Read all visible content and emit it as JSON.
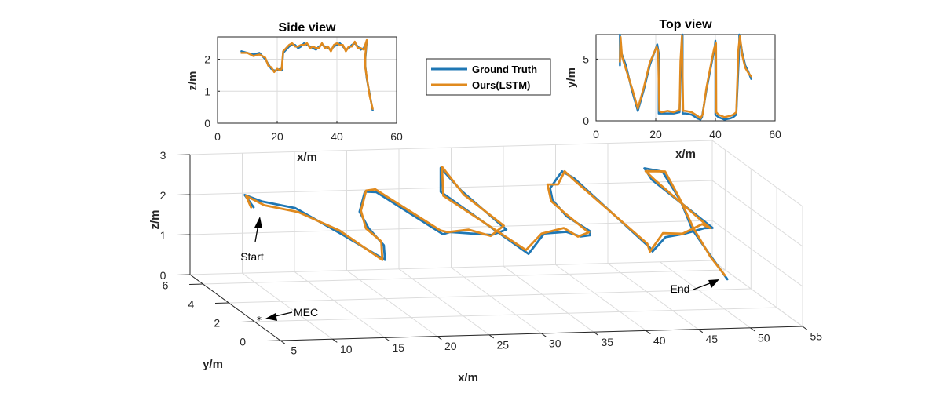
{
  "colors": {
    "ground_truth": "#1f77b4",
    "ours": "#e08a1e",
    "grid": "#dcdcdc",
    "axis": "#262626"
  },
  "legend": {
    "items": [
      {
        "label": "Ground Truth",
        "color": "#1f77b4"
      },
      {
        "label": "Ours(LSTM)",
        "color": "#e08a1e"
      }
    ]
  },
  "chart_data": [
    {
      "name": "side-view",
      "type": "line",
      "title": "Side view",
      "xlabel": "x/m",
      "ylabel": "z/m",
      "xlim": [
        0,
        60
      ],
      "ylim": [
        0,
        2.7
      ],
      "xticks": [
        0,
        20,
        40,
        60
      ],
      "yticks": [
        0,
        1,
        2
      ],
      "grid": true,
      "series": [
        {
          "name": "Ground Truth",
          "x": [
            8,
            10,
            12,
            14,
            16,
            17,
            18,
            19,
            20,
            21,
            21.5,
            22,
            23,
            24,
            25,
            26,
            27,
            28,
            29,
            30,
            31,
            32,
            33,
            34,
            35,
            36,
            37,
            38,
            39,
            40,
            41,
            42,
            43,
            44,
            45,
            46,
            47,
            48,
            49,
            50,
            49.5,
            49.5,
            50,
            51,
            52
          ],
          "y": [
            2.25,
            2.2,
            2.15,
            2.2,
            2.0,
            1.85,
            1.7,
            1.65,
            1.65,
            1.7,
            1.65,
            2.2,
            2.3,
            2.4,
            2.45,
            2.45,
            2.35,
            2.4,
            2.5,
            2.45,
            2.4,
            2.35,
            2.3,
            2.4,
            2.45,
            2.4,
            2.35,
            2.3,
            2.4,
            2.45,
            2.5,
            2.4,
            2.3,
            2.35,
            2.45,
            2.5,
            2.4,
            2.3,
            2.35,
            2.55,
            2.0,
            1.8,
            1.4,
            0.9,
            0.4
          ]
        },
        {
          "name": "Ours(LSTM)",
          "x": [
            8,
            10,
            12,
            14,
            16,
            17,
            18,
            19,
            20,
            21,
            21.5,
            22,
            23,
            24,
            25,
            26,
            27,
            28,
            29,
            30,
            31,
            32,
            33,
            34,
            35,
            36,
            37,
            38,
            39,
            40,
            41,
            42,
            43,
            44,
            45,
            46,
            47,
            48,
            49,
            50,
            49.5,
            49.5,
            50,
            51,
            52
          ],
          "y": [
            2.2,
            2.2,
            2.1,
            2.15,
            2.05,
            1.8,
            1.75,
            1.6,
            1.7,
            1.65,
            1.7,
            2.25,
            2.35,
            2.45,
            2.5,
            2.4,
            2.4,
            2.45,
            2.45,
            2.5,
            2.35,
            2.4,
            2.35,
            2.35,
            2.5,
            2.35,
            2.4,
            2.25,
            2.45,
            2.5,
            2.45,
            2.45,
            2.25,
            2.4,
            2.4,
            2.55,
            2.35,
            2.35,
            2.3,
            2.6,
            2.1,
            1.75,
            1.45,
            0.85,
            0.45
          ]
        }
      ]
    },
    {
      "name": "top-view",
      "type": "line",
      "title": "Top view",
      "xlabel": "x/m",
      "ylabel": "y/m",
      "xlim": [
        0,
        60
      ],
      "ylim": [
        0,
        7
      ],
      "xticks": [
        0,
        20,
        40,
        60
      ],
      "yticks": [
        0,
        5
      ],
      "grid": true,
      "series": [
        {
          "name": "Ground Truth",
          "x": [
            8,
            8,
            8.5,
            10,
            12,
            14,
            16,
            18,
            20.5,
            21,
            21,
            22,
            24,
            26,
            28,
            28.5,
            29,
            29,
            30,
            32,
            34,
            35,
            35.5,
            37,
            39,
            39.8,
            40,
            40,
            41,
            43,
            45,
            46,
            47,
            48,
            48,
            49,
            50,
            51,
            52
          ],
          "y": [
            4.5,
            7,
            5.5,
            4.5,
            2.5,
            0.8,
            2.5,
            4.5,
            6.2,
            5.5,
            0.6,
            0.6,
            0.6,
            0.6,
            0.7,
            5,
            7,
            0.6,
            0.6,
            0.5,
            0.2,
            0.1,
            0.3,
            2.5,
            5,
            6,
            6.5,
            0.5,
            0.3,
            0.1,
            0.2,
            0.3,
            0.5,
            6,
            7,
            5.5,
            4.5,
            4,
            3.4
          ]
        },
        {
          "name": "Ours(LSTM)",
          "x": [
            8,
            8.2,
            8.7,
            10,
            12,
            14,
            16,
            18,
            20.3,
            20.8,
            21.2,
            22,
            24,
            26,
            28,
            28.3,
            28.8,
            29.2,
            30,
            32,
            34,
            35,
            35.7,
            37,
            39,
            39.6,
            40.2,
            40.3,
            41,
            43,
            45,
            46,
            47,
            47.7,
            48.2,
            49,
            50,
            51,
            52
          ],
          "y": [
            4.8,
            6.8,
            5.2,
            4.2,
            2.7,
            1.0,
            2.7,
            4.7,
            6.0,
            5.7,
            0.8,
            0.7,
            0.8,
            0.7,
            0.9,
            4.8,
            6.9,
            0.8,
            0.8,
            0.7,
            0.4,
            0.2,
            0.5,
            2.7,
            5.2,
            5.9,
            6.3,
            0.7,
            0.5,
            0.3,
            0.4,
            0.5,
            0.7,
            5.8,
            6.9,
            5.3,
            4.3,
            3.9,
            3.6
          ]
        }
      ]
    },
    {
      "name": "3d-view",
      "type": "line",
      "title": "",
      "xlabel": "x/m",
      "ylabel": "y/m",
      "zlabel": "z/m",
      "xlim": [
        5,
        55
      ],
      "ylim": [
        0,
        7
      ],
      "zlim": [
        0,
        3
      ],
      "xticks": [
        5,
        10,
        15,
        20,
        25,
        30,
        35,
        40,
        45,
        50,
        55
      ],
      "yticks": [
        0,
        2,
        4,
        6
      ],
      "zticks": [
        0,
        1,
        2,
        3
      ],
      "grid": true,
      "series": [
        {
          "name": "Ground Truth",
          "x": [
            8,
            9,
            10,
            12,
            14,
            16,
            18,
            19,
            20,
            20.5,
            21,
            21.3,
            22,
            24,
            26,
            27.5,
            28.5,
            29,
            29,
            29.5,
            31,
            33,
            34,
            34.8,
            35,
            35.5,
            36,
            37,
            39,
            40,
            40.5,
            41,
            41,
            42,
            44,
            46,
            47,
            48,
            48.5,
            49,
            49.5,
            50,
            51,
            52
          ],
          "y": [
            4.5,
            6,
            5.5,
            4.5,
            2.5,
            0.8,
            2.5,
            4.5,
            6,
            6,
            5.5,
            0.6,
            0.6,
            0.6,
            0.6,
            0.7,
            5,
            7,
            7,
            0.6,
            0.6,
            0.5,
            0.2,
            0.1,
            0.3,
            2.5,
            4,
            5,
            6.2,
            6.5,
            6,
            0.5,
            0.3,
            0.1,
            0.2,
            0.3,
            0.5,
            6,
            7,
            6,
            5,
            4.5,
            4,
            3.4
          ],
          "z": [
            2.25,
            2.2,
            2.15,
            2.2,
            2.0,
            1.75,
            1.7,
            1.65,
            1.7,
            2.2,
            2.3,
            2.4,
            2.45,
            2.4,
            2.35,
            2.45,
            2.4,
            2.5,
            1.9,
            1.85,
            2.35,
            2.4,
            2.35,
            2.4,
            2.45,
            2.3,
            2.35,
            2.4,
            2.3,
            2.45,
            2.4,
            1.95,
            1.9,
            2.3,
            2.35,
            2.45,
            2.4,
            2.3,
            2.35,
            2.5,
            2.0,
            1.4,
            0.9,
            0.4
          ]
        },
        {
          "name": "Ours(LSTM)",
          "x": [
            8,
            9,
            10,
            12,
            14,
            16,
            18,
            19,
            20,
            20.5,
            21,
            21.3,
            22,
            24,
            26,
            27.5,
            28.5,
            29,
            29,
            29.5,
            31,
            33,
            34,
            34.8,
            35,
            35.5,
            36,
            37,
            39,
            40,
            40.5,
            41,
            41,
            42,
            44,
            46,
            47,
            48,
            48.5,
            49,
            49.5,
            50,
            51,
            52
          ],
          "y": [
            4.7,
            5.9,
            5.3,
            4.3,
            2.7,
            1.0,
            2.7,
            4.7,
            5.9,
            5.9,
            5.6,
            0.8,
            0.8,
            0.8,
            0.7,
            0.9,
            4.8,
            6.9,
            6.8,
            0.8,
            0.8,
            0.7,
            0.4,
            0.2,
            0.5,
            2.7,
            4.1,
            5.2,
            6.0,
            6.3,
            5.9,
            0.7,
            0.5,
            0.3,
            0.4,
            0.5,
            0.7,
            5.8,
            6.9,
            5.8,
            5.1,
            4.4,
            3.9,
            3.6
          ],
          "z": [
            2.2,
            2.2,
            2.1,
            2.15,
            2.05,
            1.7,
            1.75,
            1.6,
            1.75,
            2.25,
            2.35,
            2.45,
            2.4,
            2.45,
            2.3,
            2.5,
            2.35,
            2.55,
            1.85,
            1.9,
            2.3,
            2.45,
            2.3,
            2.45,
            2.4,
            2.35,
            2.3,
            2.45,
            2.25,
            2.5,
            2.35,
            2.0,
            1.85,
            2.35,
            2.3,
            2.5,
            2.35,
            2.35,
            2.3,
            2.55,
            2.05,
            1.45,
            0.85,
            0.45
          ]
        }
      ],
      "annotations": [
        {
          "text": "Start"
        },
        {
          "text": "End"
        },
        {
          "text": "MEC"
        }
      ]
    }
  ]
}
